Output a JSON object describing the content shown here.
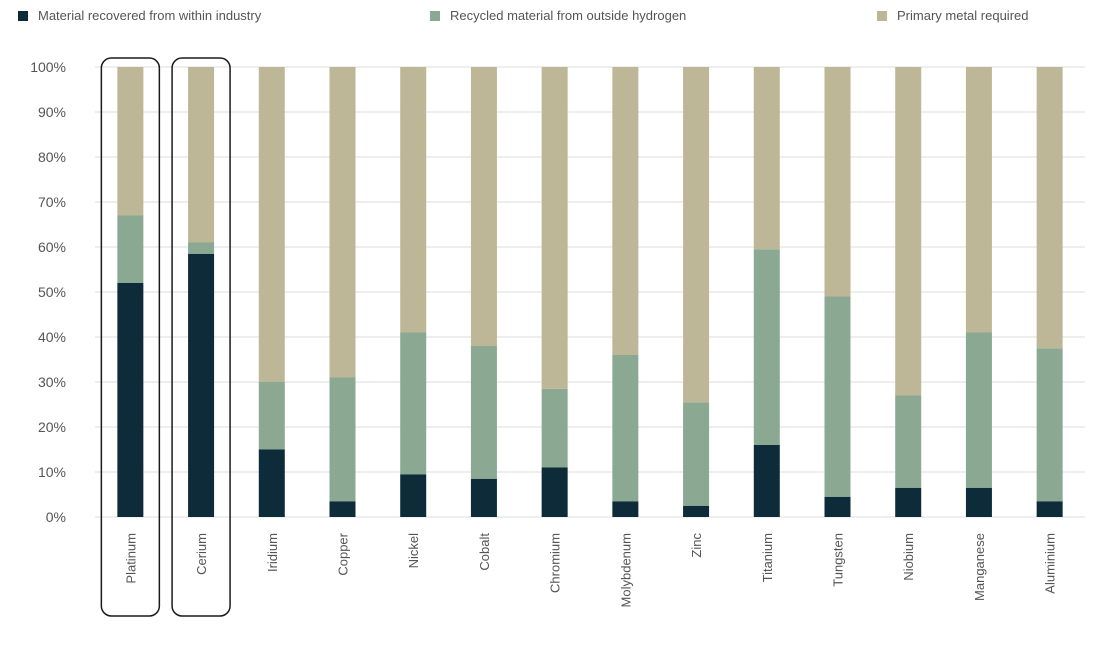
{
  "chart_data": {
    "type": "bar",
    "stacked": true,
    "categories": [
      "Platinum",
      "Cerium",
      "Iridium",
      "Copper",
      "Nickel",
      "Cobalt",
      "Chromium",
      "Molybdenum",
      "Zinc",
      "Titanium",
      "Tungsten",
      "Niobium",
      "Manganese",
      "Aluminium"
    ],
    "highlighted_categories": [
      "Platinum",
      "Cerium"
    ],
    "series": [
      {
        "name": "Material recovered from within industry",
        "color": "#0d2b38",
        "values": [
          52,
          58.5,
          15,
          3.5,
          9.5,
          8.5,
          11,
          3.5,
          2.5,
          16,
          4.5,
          6.5,
          6.5,
          3.5
        ]
      },
      {
        "name": "Recycled material from outside hydrogen",
        "color": "#8aa892",
        "values": [
          15,
          2.5,
          15,
          27.5,
          31.5,
          29.5,
          17.5,
          32.5,
          23,
          43.5,
          44.5,
          20.5,
          34.5,
          34
        ]
      },
      {
        "name": "Primary metal required",
        "color": "#bdb697",
        "values": [
          33,
          39,
          70,
          69,
          59,
          62,
          71.5,
          64,
          74.5,
          40.5,
          51,
          73,
          59,
          62.5
        ]
      }
    ],
    "y_ticks": [
      "0%",
      "10%",
      "20%",
      "30%",
      "40%",
      "50%",
      "60%",
      "70%",
      "80%",
      "90%",
      "100%"
    ],
    "ylim": [
      0,
      100
    ],
    "xlabel": "",
    "ylabel": "",
    "grid": true,
    "legend_position": "top"
  }
}
